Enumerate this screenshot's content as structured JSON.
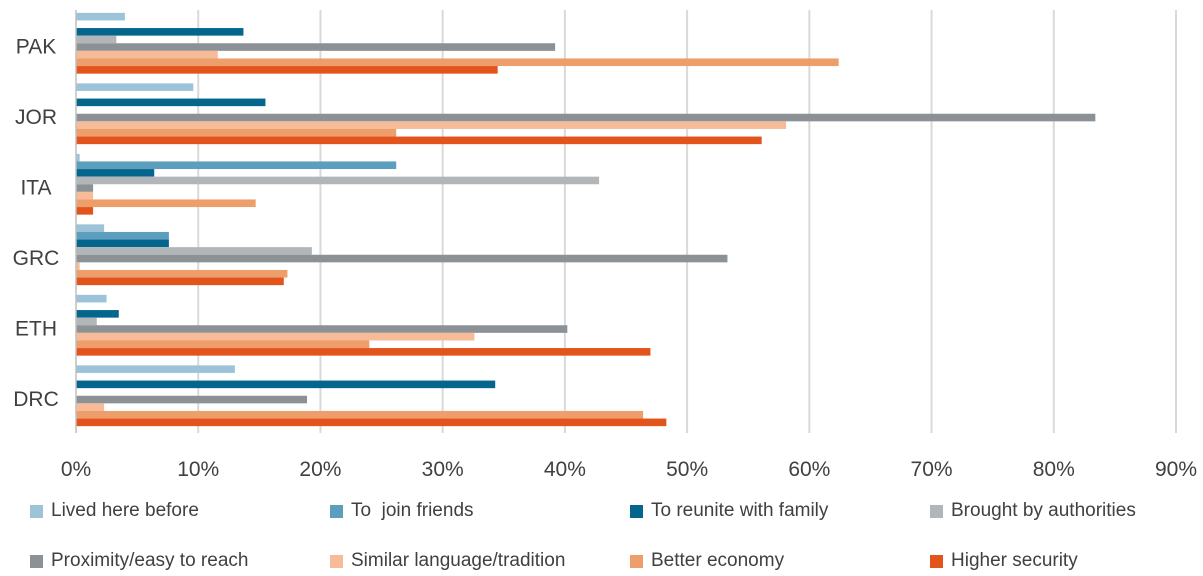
{
  "chart_data": {
    "type": "bar",
    "orientation": "horizontal",
    "categories": [
      "PAK",
      "JOR",
      "ITA",
      "GRC",
      "ETH",
      "DRC"
    ],
    "xlim": [
      0,
      90
    ],
    "x_ticks": [
      "0%",
      "10%",
      "20%",
      "30%",
      "40%",
      "50%",
      "60%",
      "70%",
      "80%",
      "90%"
    ],
    "grid": "vertical",
    "legend_position": "bottom",
    "unit": "%",
    "series": [
      {
        "name": "Lived here before",
        "color": "#9DC3D9",
        "values": [
          4.0,
          9.6,
          0.3,
          2.3,
          2.5,
          13.0
        ]
      },
      {
        "name": "To  join friends",
        "color": "#5B9EBD",
        "values": [
          0,
          0,
          26.2,
          7.6,
          0,
          0
        ]
      },
      {
        "name": "To reunite with family",
        "color": "#05668D",
        "values": [
          13.7,
          15.5,
          6.4,
          7.6,
          3.5,
          34.3
        ]
      },
      {
        "name": "Brought by authorities",
        "color": "#B3B6B8",
        "values": [
          3.3,
          0,
          42.8,
          19.3,
          1.7,
          0
        ]
      },
      {
        "name": "Proximity/easy to reach",
        "color": "#8C9196",
        "values": [
          39.2,
          83.4,
          1.4,
          53.3,
          40.2,
          18.9
        ]
      },
      {
        "name": "Similar language/tradition",
        "color": "#F7BB98",
        "values": [
          11.6,
          58.1,
          1.4,
          0.3,
          32.6,
          2.3
        ]
      },
      {
        "name": "Better economy",
        "color": "#EE9E6A",
        "values": [
          62.4,
          26.2,
          14.7,
          17.3,
          24.0,
          46.4
        ]
      },
      {
        "name": "Higher security",
        "color": "#E3541C",
        "values": [
          34.5,
          56.1,
          1.4,
          17.0,
          47.0,
          48.3
        ]
      }
    ]
  }
}
